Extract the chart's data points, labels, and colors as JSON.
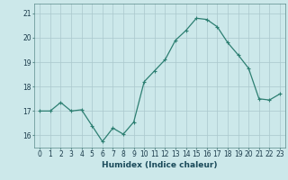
{
  "x": [
    0,
    1,
    2,
    3,
    4,
    5,
    6,
    7,
    8,
    9,
    10,
    11,
    12,
    13,
    14,
    15,
    16,
    17,
    18,
    19,
    20,
    21,
    22,
    23
  ],
  "y": [
    17.0,
    17.0,
    17.35,
    17.0,
    17.05,
    16.4,
    15.75,
    16.3,
    16.05,
    16.55,
    18.2,
    18.65,
    19.1,
    19.9,
    20.3,
    20.8,
    20.75,
    20.45,
    19.8,
    19.3,
    18.75,
    17.5,
    17.45,
    17.7
  ],
  "line_color": "#2d7f72",
  "marker": "+",
  "bg_color": "#cce8ea",
  "grid_color": "#aac8cc",
  "xlabel": "Humidex (Indice chaleur)",
  "xlim": [
    -0.5,
    23.5
  ],
  "ylim": [
    15.5,
    21.4
  ],
  "yticks": [
    16,
    17,
    18,
    19,
    20,
    21
  ],
  "xticks": [
    0,
    1,
    2,
    3,
    4,
    5,
    6,
    7,
    8,
    9,
    10,
    11,
    12,
    13,
    14,
    15,
    16,
    17,
    18,
    19,
    20,
    21,
    22,
    23
  ],
  "xlabel_fontsize": 6.5,
  "tick_fontsize": 5.5,
  "linewidth": 0.9,
  "markersize": 3.5
}
